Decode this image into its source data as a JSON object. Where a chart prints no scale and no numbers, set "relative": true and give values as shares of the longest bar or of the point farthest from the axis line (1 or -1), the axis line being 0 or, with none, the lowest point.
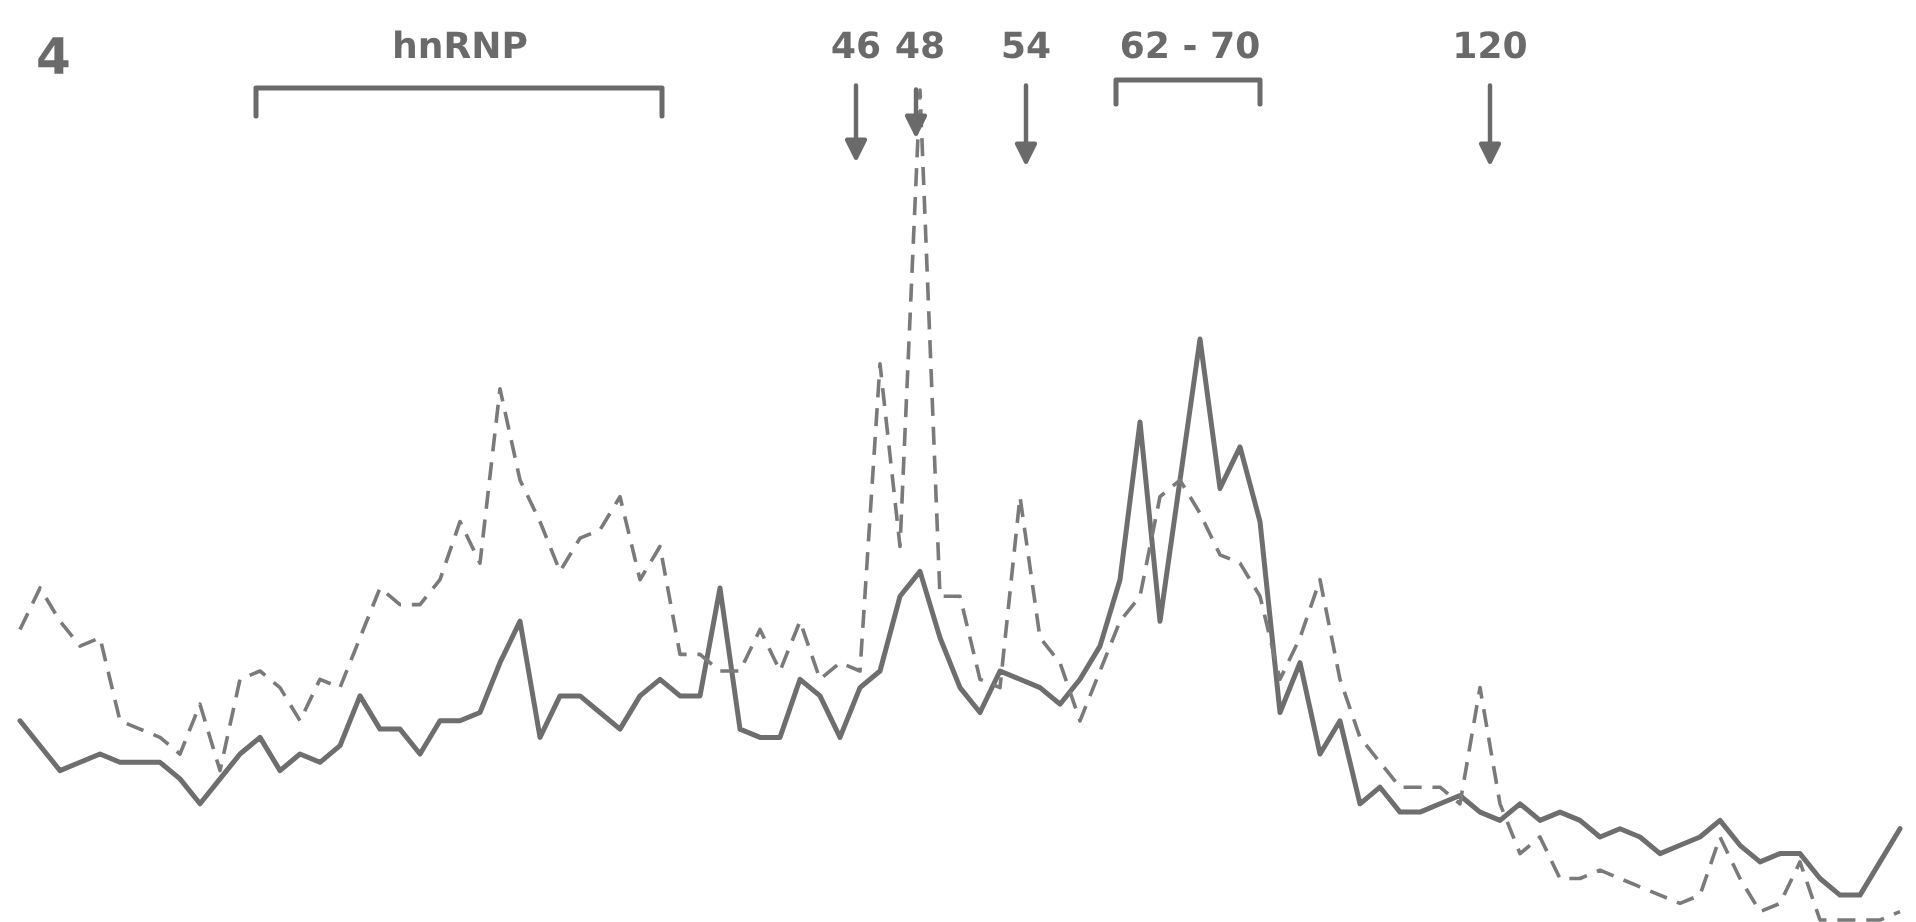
{
  "chart_data": {
    "type": "line",
    "relative": true,
    "annotations": [
      "4",
      "hnRNP",
      "46",
      "48",
      "54",
      "62 - 70",
      "120"
    ],
    "categories": [
      null,
      null,
      null,
      null,
      null,
      null,
      null,
      null,
      null,
      null,
      null,
      null,
      null,
      null,
      null,
      null,
      null,
      null,
      null,
      null,
      null,
      null,
      null,
      null,
      null,
      null,
      null,
      null,
      null,
      null,
      null,
      null,
      null,
      null,
      null,
      null,
      null,
      null,
      null,
      null,
      null,
      null,
      null,
      null,
      null,
      null,
      null,
      null,
      null,
      null,
      null,
      null,
      null,
      null,
      null,
      null,
      null,
      null,
      null,
      null,
      null,
      null,
      null,
      null,
      null,
      null,
      null,
      null,
      null,
      null,
      null,
      null,
      null,
      null,
      null,
      null,
      null,
      null,
      null,
      null,
      null,
      null,
      null,
      null,
      null,
      null,
      null,
      null,
      null,
      null,
      null,
      null,
      null,
      null,
      null
    ],
    "series": [
      {
        "color": "#6e6e6e",
        "line_style": "solid",
        "values": [
          0.24,
          0.21,
          0.18,
          0.19,
          0.2,
          0.19,
          0.19,
          0.19,
          0.17,
          0.14,
          0.17,
          0.2,
          0.22,
          0.18,
          0.2,
          0.19,
          0.21,
          0.27,
          0.23,
          0.23,
          0.2,
          0.24,
          0.24,
          0.25,
          0.31,
          0.36,
          0.22,
          0.27,
          0.27,
          0.25,
          0.23,
          0.27,
          0.29,
          0.27,
          0.27,
          0.4,
          0.23,
          0.22,
          0.22,
          0.29,
          0.27,
          0.22,
          0.28,
          0.3,
          0.39,
          0.42,
          0.34,
          0.28,
          0.25,
          0.3,
          0.29,
          0.28,
          0.26,
          0.29,
          0.33,
          0.41,
          0.6,
          0.36,
          0.53,
          0.7,
          0.52,
          0.57,
          0.48,
          0.25,
          0.31,
          0.2,
          0.24,
          0.14,
          0.16,
          0.13,
          0.13,
          0.14,
          0.15,
          0.13,
          0.12,
          0.14,
          0.12,
          0.13,
          0.12,
          0.1,
          0.11,
          0.1,
          0.08,
          0.09,
          0.1,
          0.12,
          0.09,
          0.07,
          0.08,
          0.08,
          0.05,
          0.03,
          0.03,
          0.07,
          0.11
        ]
      },
      {
        "color": "#7a7a7a",
        "line_style": "dashed",
        "values": [
          0.35,
          0.4,
          0.36,
          0.33,
          0.34,
          0.24,
          0.23,
          0.22,
          0.2,
          0.26,
          0.18,
          0.29,
          0.3,
          0.28,
          0.24,
          0.29,
          0.28,
          0.34,
          0.4,
          0.38,
          0.38,
          0.41,
          0.48,
          0.43,
          0.64,
          0.53,
          0.48,
          0.42,
          0.46,
          0.47,
          0.51,
          0.41,
          0.45,
          0.32,
          0.32,
          0.3,
          0.3,
          0.35,
          0.3,
          0.36,
          0.29,
          0.31,
          0.3,
          0.67,
          0.45,
          1.0,
          0.39,
          0.39,
          0.29,
          0.28,
          0.51,
          0.34,
          0.31,
          0.24,
          0.3,
          0.36,
          0.39,
          0.51,
          0.53,
          0.49,
          0.44,
          0.43,
          0.39,
          0.29,
          0.34,
          0.41,
          0.29,
          0.22,
          0.19,
          0.16,
          0.16,
          0.16,
          0.14,
          0.28,
          0.14,
          0.08,
          0.1,
          0.05,
          0.05,
          0.06,
          0.05,
          0.04,
          0.03,
          0.02,
          0.03,
          0.1,
          0.05,
          0.01,
          0.02,
          0.07,
          0.0,
          0.0,
          0.0,
          0.0,
          0.01
        ]
      }
    ]
  }
}
